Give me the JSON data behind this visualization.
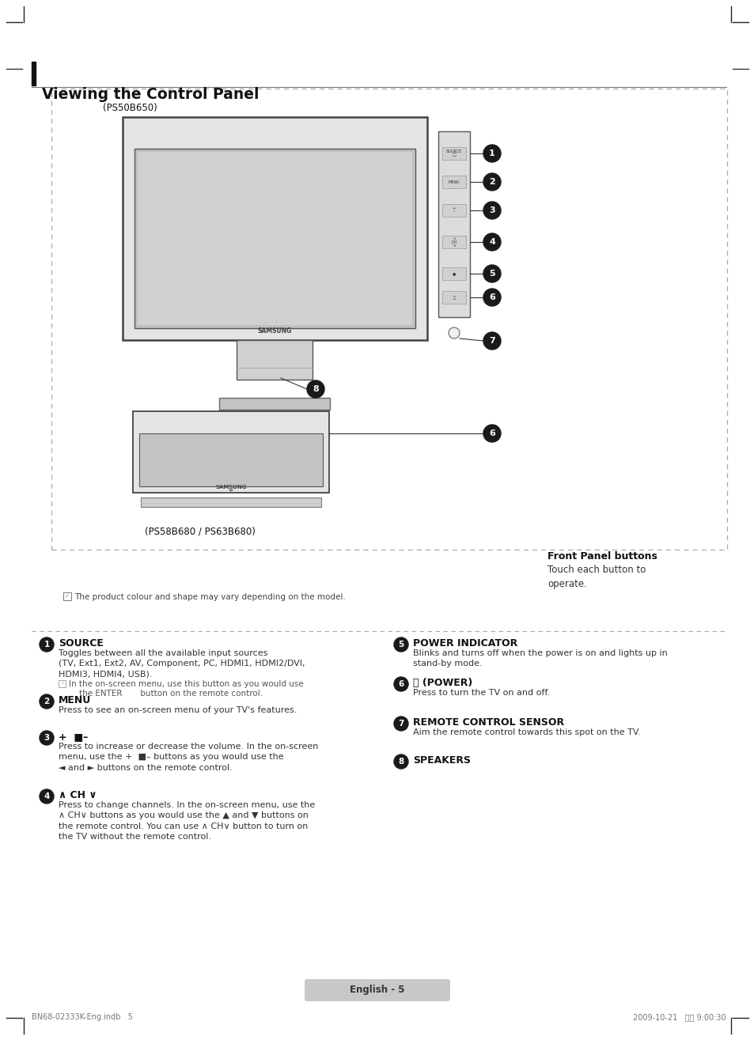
{
  "page_bg": "#ffffff",
  "title": "Viewing the Control Panel",
  "model1_label": "(PS50B650)",
  "model2_label": "(PS58B680 / PS63B680)",
  "front_panel_title": "Front Panel buttons",
  "front_panel_desc": "Touch each button to\noperate.",
  "note_text": "The product colour and shape may vary depending on the model.",
  "footer_left": "BN68-02333K-Eng.indb   5",
  "footer_right": "2009-10-21   9:00:30",
  "page_label": "English - 5",
  "left_sections": [
    {
      "num": "1",
      "title": "SOURCE",
      "body": "Toggles between all the available input sources\n(TV, Ext1, Ext2, AV, Component, PC, HDMI1, HDMI2/DVI,\nHDMI3, HDMI4, USB).",
      "note": "In the on-screen menu, use this button as you would use\n    the ENTER       button on the remote control."
    },
    {
      "num": "2",
      "title": "MENU",
      "body": "Press to see an on-screen menu of your TV's features.",
      "note": ""
    },
    {
      "num": "3",
      "title": "+  ■–",
      "body": "Press to increase or decrease the volume. In the on-screen\nmenu, use the +  ■– buttons as you would use the\n◄ and ► buttons on the remote control.",
      "note": ""
    },
    {
      "num": "4",
      "title": "∧ CH ∨",
      "body": "Press to change channels. In the on-screen menu, use the\n∧ CH∨ buttons as you would use the ▲ and ▼ buttons on\nthe remote control. You can use ∧ CH∨ button to turn on\nthe TV without the remote control.",
      "note": ""
    }
  ],
  "right_sections": [
    {
      "num": "5",
      "title": "POWER INDICATOR",
      "body": "Blinks and turns off when the power is on and lights up in\nstand-by mode.",
      "note": ""
    },
    {
      "num": "6",
      "title": "⏻ (POWER)",
      "body": "Press to turn the TV on and off.",
      "note": ""
    },
    {
      "num": "7",
      "title": "REMOTE CONTROL SENSOR",
      "body": "Aim the remote control towards this spot on the TV.",
      "note": ""
    },
    {
      "num": "8",
      "title": "SPEAKERS",
      "body": "",
      "note": ""
    }
  ]
}
